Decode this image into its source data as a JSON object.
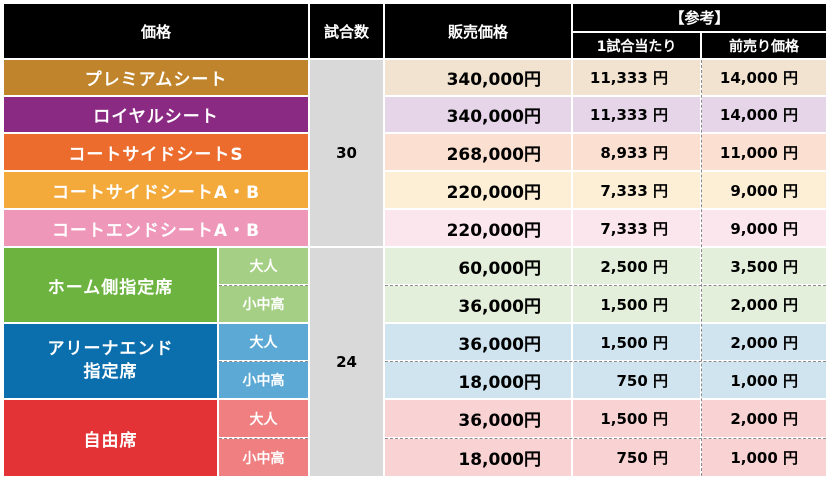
{
  "header": {
    "price_class": "価格",
    "games": "試合数",
    "sale_price": "販売価格",
    "reference": "【参考】",
    "per_game": "1試合当たり",
    "presale": "前売り価格"
  },
  "games": {
    "group1": "30",
    "group2": "24"
  },
  "seats": [
    {
      "name": "プレミアムシート",
      "price": "340,000円",
      "per_game": "11,333 円",
      "presale": "14,000 円",
      "color": "#c0852c",
      "tint": "#f1e3cf"
    },
    {
      "name": "ロイヤルシート",
      "price": "340,000円",
      "per_game": "11,333 円",
      "presale": "14,000 円",
      "color": "#8b2a83",
      "tint": "#e6d5e8"
    },
    {
      "name": "コートサイドシートS",
      "price": "268,000円",
      "per_game": "8,933 円",
      "presale": "11,000 円",
      "color": "#ec6c2e",
      "tint": "#fbdfd0"
    },
    {
      "name": "コートサイドシートA・B",
      "price": "220,000円",
      "per_game": "7,333 円",
      "presale": "9,000 円",
      "color": "#f3aa3b",
      "tint": "#fcefd6"
    },
    {
      "name": "コートエンドシートA・B",
      "price": "220,000円",
      "per_game": "7,333 円",
      "presale": "9,000 円",
      "color": "#ee97b8",
      "tint": "#fbe6ee"
    }
  ],
  "groups": [
    {
      "name": "ホーム側指定席",
      "color": "#6db33f",
      "sub_color": "#a4cf84",
      "tint": "#e3efda",
      "rows": [
        {
          "label": "大人",
          "price": "60,000円",
          "per_game": "2,500 円",
          "presale": "3,500 円"
        },
        {
          "label": "小中高",
          "price": "36,000円",
          "per_game": "1,500 円",
          "presale": "2,000 円"
        }
      ]
    },
    {
      "name_line1": "アリーナエンド",
      "name_line2": "指定席",
      "color": "#0b6fae",
      "sub_color": "#5da9d6",
      "tint": "#cfe4ef",
      "rows": [
        {
          "label": "大人",
          "price": "36,000円",
          "per_game": "1,500 円",
          "presale": "2,000 円"
        },
        {
          "label": "小中高",
          "price": "18,000円",
          "per_game": "750 円",
          "presale": "1,000 円"
        }
      ]
    },
    {
      "name": "自由席",
      "color": "#e43336",
      "sub_color": "#ef7f80",
      "tint": "#f9d3d3",
      "rows": [
        {
          "label": "大人",
          "price": "36,000円",
          "per_game": "1,500 円",
          "presale": "2,000 円"
        },
        {
          "label": "小中高",
          "price": "18,000円",
          "per_game": "750 円",
          "presale": "1,000 円"
        }
      ]
    }
  ]
}
